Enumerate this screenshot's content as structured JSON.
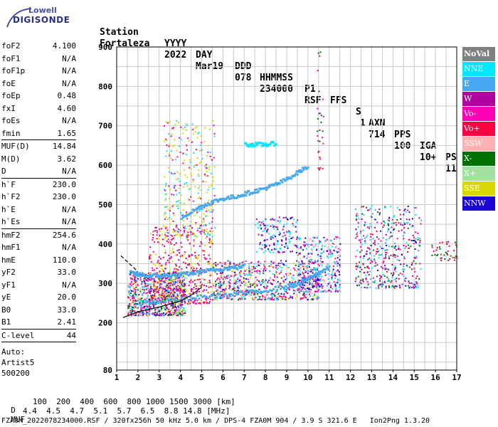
{
  "logo": {
    "line1": "Lowell",
    "line2": "DIGISONDE"
  },
  "header": {
    "labels": [
      "Station",
      "YYYY",
      "DAY",
      "DDD",
      "HHMMSS",
      "P1",
      "FFS",
      "S",
      "AXN",
      "PPS",
      "IGA",
      "PS"
    ],
    "values": [
      "Fortaleza",
      "2022",
      "Mar19",
      "078",
      "234000",
      "RSF",
      "",
      "1",
      "714",
      "100",
      "10+",
      "11"
    ]
  },
  "sidebar": {
    "groups": [
      [
        {
          "name": "foF2",
          "value": "4.100"
        },
        {
          "name": "foF1",
          "value": "N/A"
        },
        {
          "name": "foF1p",
          "value": "N/A"
        },
        {
          "name": "foE",
          "value": "N/A"
        },
        {
          "name": "foEp",
          "value": "0.48"
        },
        {
          "name": "fxI",
          "value": "4.60"
        },
        {
          "name": "foEs",
          "value": "N/A"
        },
        {
          "name": "fmin",
          "value": "1.65"
        }
      ],
      [
        {
          "name": "MUF(D)",
          "value": "14.84"
        },
        {
          "name": "M(D)",
          "value": "3.62"
        },
        {
          "name": "D",
          "value": "N/A"
        }
      ],
      [
        {
          "name": "h`F",
          "value": "230.0"
        },
        {
          "name": "h`F2",
          "value": "230.0"
        },
        {
          "name": "h`E",
          "value": "N/A"
        },
        {
          "name": "h`Es",
          "value": "N/A"
        }
      ],
      [
        {
          "name": "hmF2",
          "value": "254.6"
        },
        {
          "name": "hmF1",
          "value": "N/A"
        },
        {
          "name": "hmE",
          "value": "110.0"
        },
        {
          "name": "yF2",
          "value": "33.0"
        },
        {
          "name": "yF1",
          "value": "N/A"
        },
        {
          "name": "yE",
          "value": "20.0"
        },
        {
          "name": "B0",
          "value": "33.0"
        },
        {
          "name": "B1",
          "value": "2.41"
        }
      ],
      [
        {
          "name": "C-level",
          "value": "44"
        }
      ]
    ],
    "auto": [
      "Auto:",
      "Artist5",
      "500200"
    ]
  },
  "legend": [
    {
      "label": "NoVal",
      "color": "#808080"
    },
    {
      "label": "NNE",
      "color": "#00e6ff"
    },
    {
      "label": "E",
      "color": "#46a8f0"
    },
    {
      "label": "W",
      "color": "#b000a0"
    },
    {
      "label": "Vo-",
      "color": "#ff00b4"
    },
    {
      "label": "Vo+",
      "color": "#ff0040"
    },
    {
      "label": "SSW",
      "color": "#ffb0b0"
    },
    {
      "label": "X-",
      "color": "#007000"
    },
    {
      "label": "X+",
      "color": "#a0e0a0"
    },
    {
      "label": "SSE",
      "color": "#d8d800"
    },
    {
      "label": "NNW",
      "color": "#1c00d8"
    }
  ],
  "footer": {
    "d_label": "D",
    "d_values": "100  200  400  600  800 1000 1500 3000 [km]",
    "muf_label": "MUF",
    "muf_values": "4.4  4.5  4.7  5.1  5.7  6.5  8.8 14.8 [MHz]",
    "file_line": "FZA0M_2022078234000.RSF / 320fx256h 50 kHz 5.0 km / DPS-4 FZA0M 904 / 3.9 S 321.6 E   Ion2Png 1.3.20"
  },
  "chart_data": {
    "type": "scatter",
    "xlim": [
      1,
      17
    ],
    "ylim": [
      80,
      900
    ],
    "x_ticks": [
      1,
      2,
      3,
      4,
      5,
      6,
      7,
      8,
      9,
      10,
      11,
      12,
      13,
      14,
      15,
      16,
      17
    ],
    "y_ticks": [
      80,
      200,
      300,
      400,
      500,
      600,
      700,
      800,
      900
    ],
    "grid": true,
    "legend_placement": "right",
    "traces": [
      {
        "name": "E",
        "color": "#46a8f0",
        "points": [
          [
            1.6,
            330
          ],
          [
            2.0,
            325
          ],
          [
            2.5,
            322
          ],
          [
            3.0,
            322
          ],
          [
            3.5,
            322
          ],
          [
            4.0,
            325
          ],
          [
            4.5,
            328
          ],
          [
            5.0,
            333
          ],
          [
            5.5,
            336
          ],
          [
            6.0,
            340
          ],
          [
            6.5,
            343
          ],
          [
            7.0,
            347
          ]
        ]
      },
      {
        "name": "E",
        "color": "#46a8f0",
        "points": [
          [
            4.0,
            470
          ],
          [
            4.5,
            485
          ],
          [
            5.0,
            500
          ],
          [
            5.5,
            510
          ],
          [
            6.0,
            518
          ],
          [
            6.5,
            522
          ],
          [
            7.0,
            530
          ],
          [
            7.5,
            537
          ],
          [
            8.0,
            545
          ],
          [
            8.5,
            555
          ],
          [
            9.0,
            568
          ],
          [
            9.5,
            585
          ],
          [
            10.0,
            600
          ]
        ]
      },
      {
        "name": "NNE",
        "color": "#00e6ff",
        "points": [
          [
            7.0,
            655
          ],
          [
            7.5,
            655
          ],
          [
            8.0,
            655
          ],
          [
            8.5,
            658
          ]
        ]
      },
      {
        "name": "E",
        "color": "#46a8f0",
        "points": [
          [
            2.0,
            250
          ],
          [
            3.0,
            258
          ],
          [
            4.0,
            262
          ],
          [
            5.0,
            268
          ],
          [
            6.0,
            272
          ],
          [
            7.0,
            278
          ],
          [
            8.0,
            285
          ],
          [
            9.0,
            295
          ],
          [
            9.5,
            300
          ],
          [
            10.0,
            315
          ],
          [
            10.5,
            330
          ],
          [
            11.0,
            345
          ]
        ]
      }
    ],
    "outline": [
      [
        1.3,
        213
      ],
      [
        2.0,
        228
      ],
      [
        3.0,
        240
      ],
      [
        4.0,
        255
      ],
      [
        4.5,
        270
      ],
      [
        5.0,
        290
      ]
    ],
    "outline_upper": [
      [
        1.2,
        370
      ],
      [
        1.6,
        350
      ],
      [
        2.0,
        330
      ]
    ]
  }
}
